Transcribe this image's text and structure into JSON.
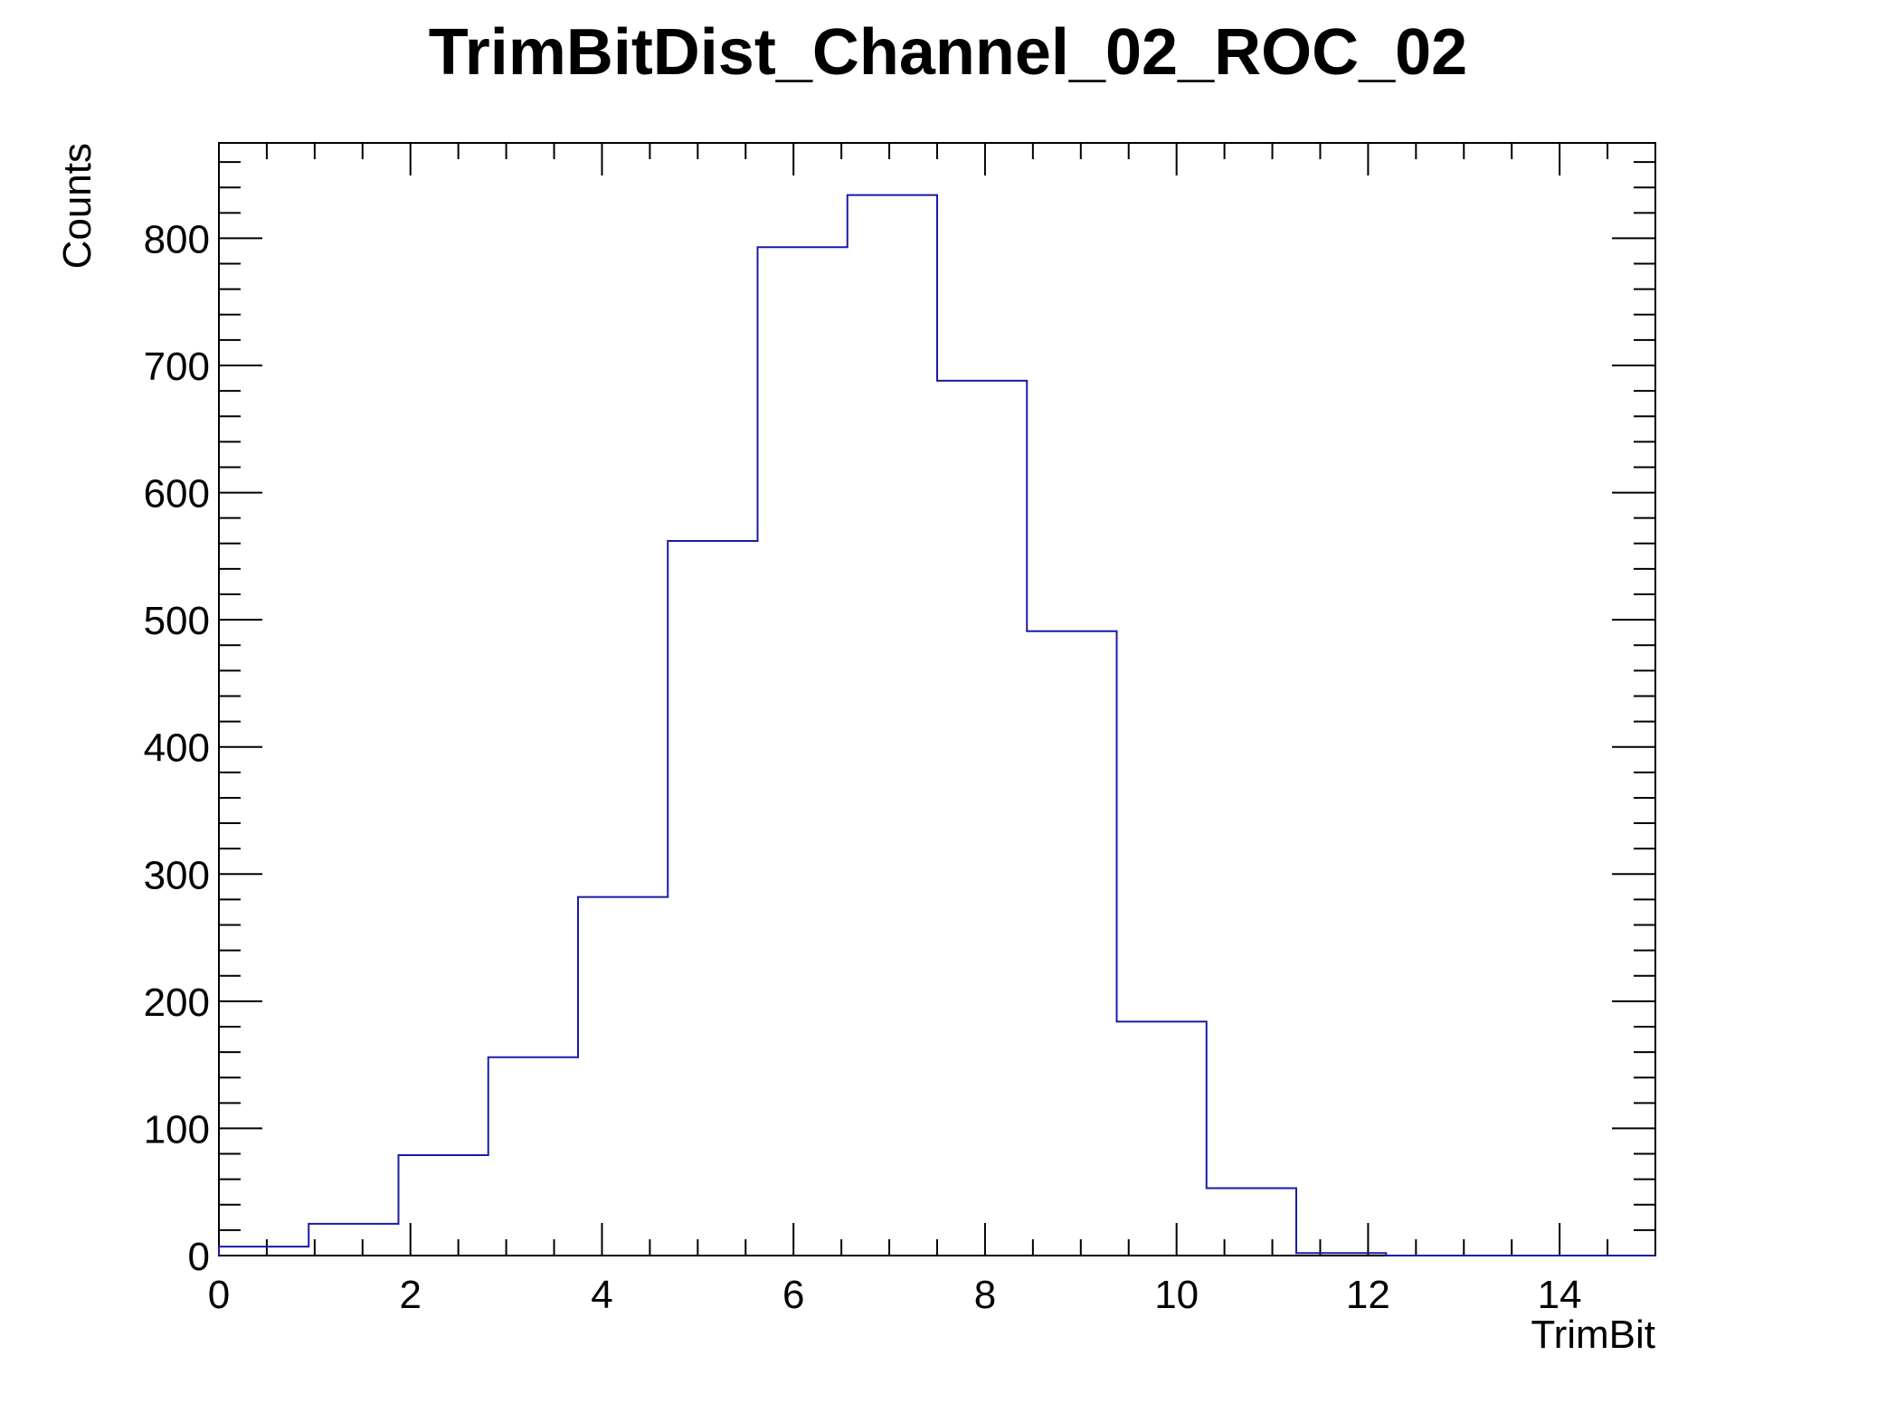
{
  "chart_data": {
    "type": "bar",
    "style": "step-histogram",
    "title": "TrimBitDist_Channel_02_ROC_02",
    "xlabel": "TrimBit",
    "ylabel": "Counts",
    "xlim": [
      0,
      15
    ],
    "ylim": [
      0,
      875
    ],
    "bin_width": 0.9375,
    "bin_edges": [
      0,
      0.9375,
      1.875,
      2.8125,
      3.75,
      4.6875,
      5.625,
      6.5625,
      7.5,
      8.4375,
      9.375,
      10.3125,
      11.25,
      12.1875,
      13.125,
      14.0625,
      15
    ],
    "values": [
      7,
      25,
      79,
      156,
      282,
      562,
      793,
      834,
      688,
      491,
      184,
      53,
      2,
      0,
      0,
      0
    ],
    "x_ticks": [
      0,
      2,
      4,
      6,
      8,
      10,
      12,
      14
    ],
    "x_tick_labels": [
      "0",
      "2",
      "4",
      "6",
      "8",
      "10",
      "12",
      "14"
    ],
    "y_ticks": [
      0,
      100,
      200,
      300,
      400,
      500,
      600,
      700,
      800
    ],
    "y_tick_labels": [
      "0",
      "100",
      "200",
      "300",
      "400",
      "500",
      "600",
      "700",
      "800"
    ],
    "grid": false,
    "line_color": "#1a1aa8",
    "axis_color": "#000000"
  }
}
